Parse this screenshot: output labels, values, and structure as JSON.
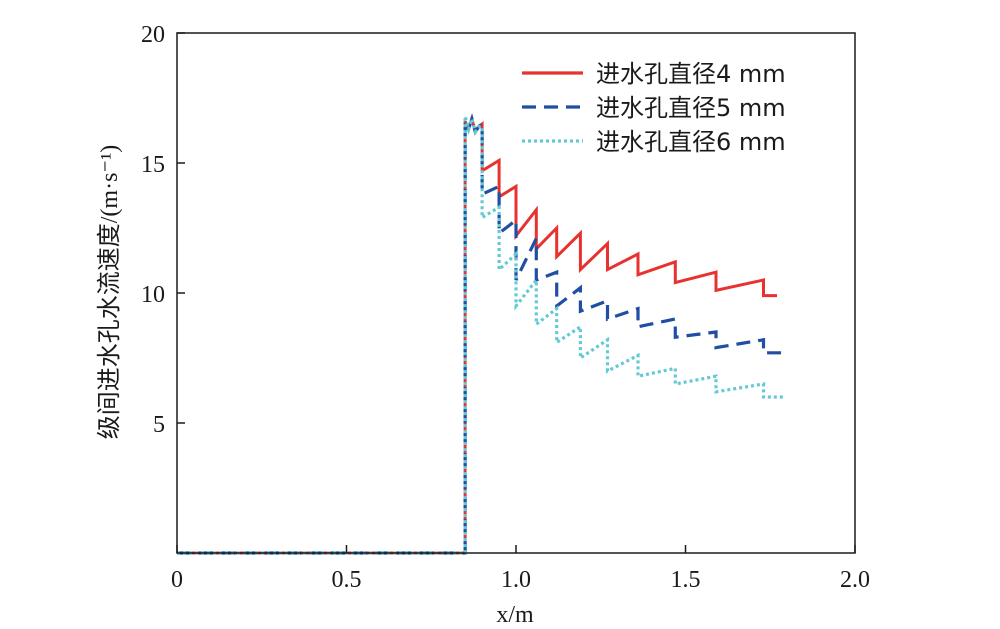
{
  "chart_data": {
    "type": "line",
    "xlabel": "x/m",
    "ylabel": "级间进水孔水流速度/(m·s⁻¹)",
    "xlim": [
      0,
      2.0
    ],
    "ylim": [
      0,
      20
    ],
    "xticks": [
      "0",
      "0.5",
      "1.0",
      "1.5",
      "2.0"
    ],
    "xtick_values": [
      0,
      0.5,
      1.0,
      1.5,
      2.0
    ],
    "yticks": [
      "5",
      "10",
      "15",
      "20"
    ],
    "ytick_values": [
      5,
      10,
      15,
      20
    ],
    "grid": false,
    "legend_position": "top-right",
    "series": [
      {
        "name": "进水孔直径4 mm",
        "color": "#e8322f",
        "style": "solid",
        "x": [
          0,
          0.85,
          0.85,
          0.86,
          0.87,
          0.88,
          0.89,
          0.9,
          0.9,
          0.95,
          0.95,
          1.0,
          1.0,
          1.06,
          1.06,
          1.12,
          1.12,
          1.19,
          1.19,
          1.27,
          1.27,
          1.36,
          1.36,
          1.47,
          1.47,
          1.59,
          1.59,
          1.73,
          1.73,
          1.77
        ],
        "y": [
          0,
          0,
          16.6,
          16.3,
          16.7,
          16.2,
          16.4,
          16.5,
          14.7,
          15.1,
          13.7,
          14.1,
          12.2,
          13.2,
          11.7,
          12.5,
          11.4,
          12.3,
          10.9,
          11.9,
          10.9,
          11.5,
          10.7,
          11.2,
          10.4,
          10.8,
          10.1,
          10.5,
          9.9,
          9.9
        ]
      },
      {
        "name": "进水孔直径5 mm",
        "color": "#1f4ea3",
        "style": "dashed",
        "x": [
          0,
          0.85,
          0.85,
          0.86,
          0.87,
          0.88,
          0.89,
          0.9,
          0.9,
          0.95,
          0.95,
          1.0,
          1.0,
          1.06,
          1.06,
          1.12,
          1.12,
          1.19,
          1.19,
          1.27,
          1.27,
          1.36,
          1.36,
          1.47,
          1.47,
          1.59,
          1.59,
          1.73,
          1.73,
          1.79
        ],
        "y": [
          0,
          0,
          16.6,
          16.3,
          16.7,
          16.2,
          16.4,
          16.5,
          13.8,
          14.1,
          12.3,
          12.8,
          10.5,
          12.1,
          10.5,
          10.8,
          9.5,
          10.2,
          9.3,
          9.7,
          9.0,
          9.4,
          8.7,
          9.0,
          8.3,
          8.5,
          7.9,
          8.2,
          7.7,
          7.7
        ]
      },
      {
        "name": "进水孔直径6 mm",
        "color": "#63c9d4",
        "style": "dotted",
        "x": [
          0,
          0.85,
          0.85,
          0.86,
          0.87,
          0.88,
          0.89,
          0.9,
          0.9,
          0.95,
          0.95,
          1.0,
          1.0,
          1.06,
          1.06,
          1.12,
          1.12,
          1.19,
          1.19,
          1.27,
          1.27,
          1.36,
          1.36,
          1.47,
          1.47,
          1.59,
          1.59,
          1.73,
          1.73,
          1.79
        ],
        "y": [
          0,
          0,
          16.8,
          16.3,
          16.7,
          16.2,
          16.4,
          16.4,
          12.9,
          13.3,
          10.9,
          11.5,
          9.5,
          10.5,
          8.8,
          9.4,
          8.1,
          8.7,
          7.5,
          8.2,
          7.0,
          7.6,
          6.8,
          7.1,
          6.5,
          6.8,
          6.2,
          6.5,
          6.0,
          6.0
        ]
      }
    ]
  }
}
